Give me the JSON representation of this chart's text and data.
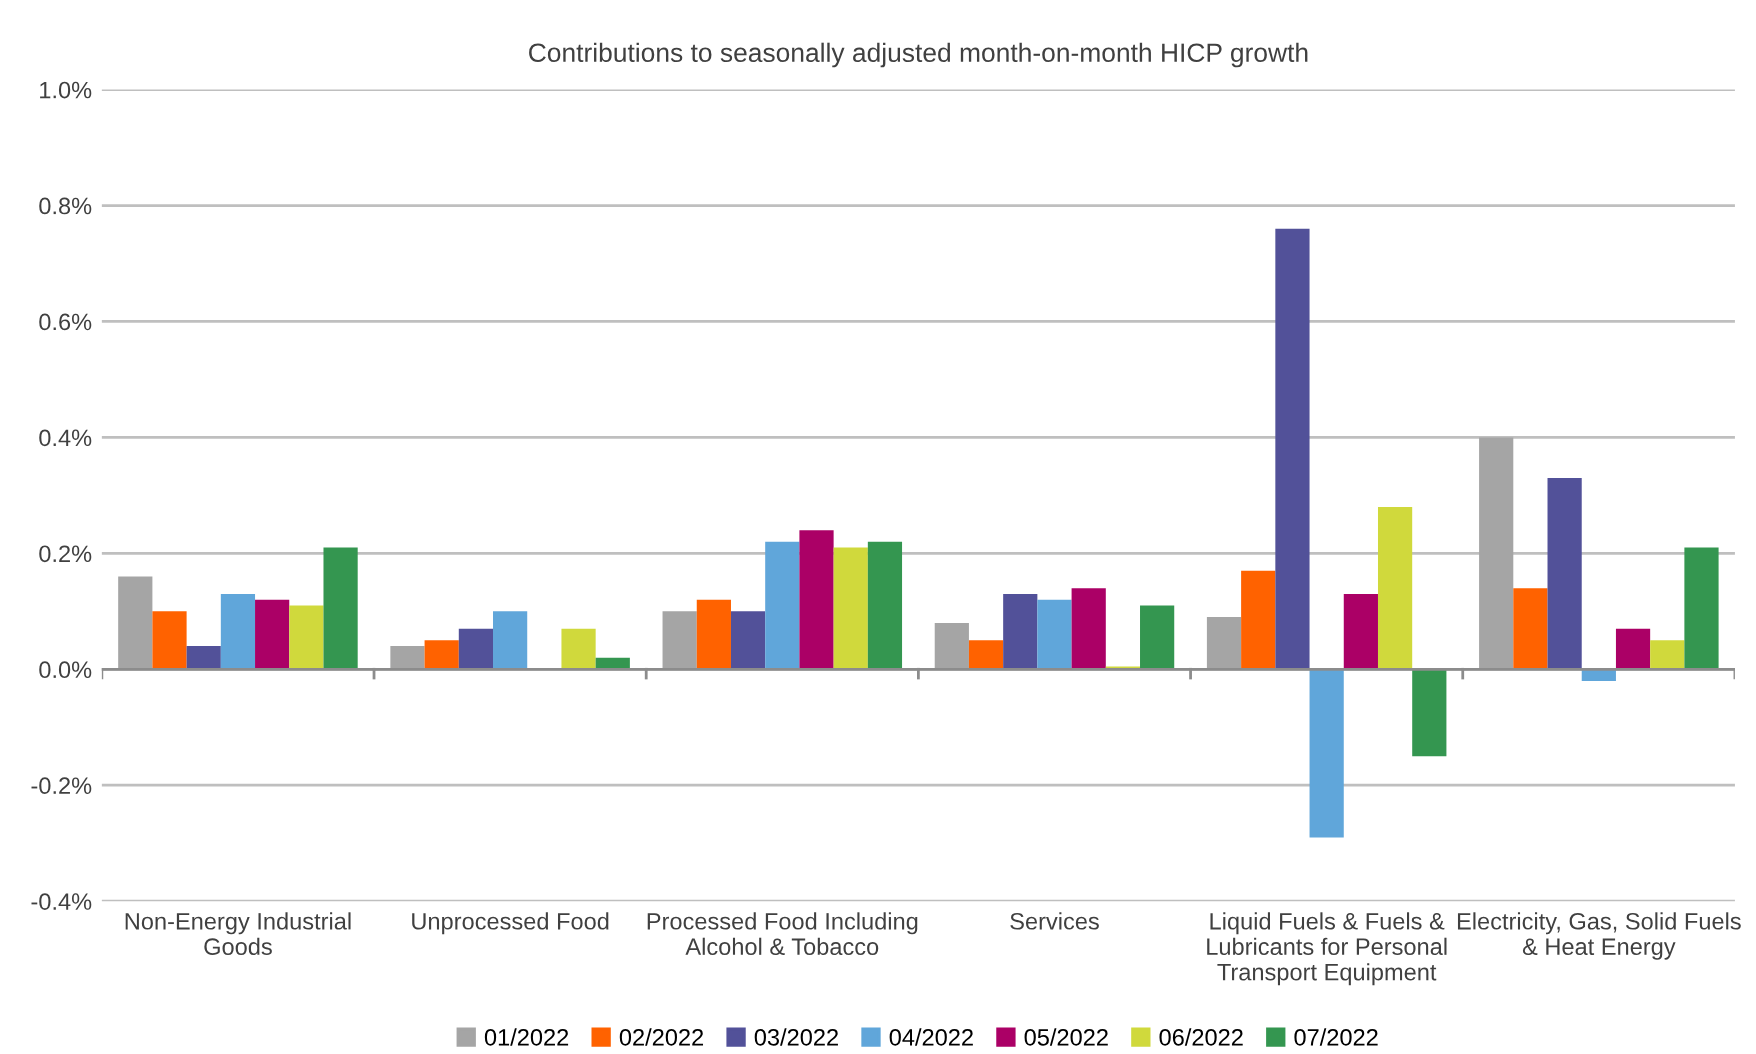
{
  "chart_data": {
    "type": "bar",
    "title": "Contributions to seasonally adjusted month-on-month HICP growth",
    "categories": [
      "Non-Energy Industrial\nGoods",
      "Unprocessed Food",
      "Processed Food Including\nAlcohol & Tobacco",
      "Services",
      "Liquid Fuels & Fuels &\nLubricants for Personal\nTransport Equipment",
      "Electricity, Gas, Solid Fuels\n& Heat Energy"
    ],
    "series": [
      {
        "name": "01/2022",
        "color": "#a5a5a5",
        "values": [
          0.16,
          0.04,
          0.1,
          0.08,
          0.09,
          0.4
        ]
      },
      {
        "name": "02/2022",
        "color": "#ff6200",
        "values": [
          0.1,
          0.05,
          0.12,
          0.05,
          0.17,
          0.14
        ]
      },
      {
        "name": "03/2022",
        "color": "#525199",
        "values": [
          0.04,
          0.07,
          0.1,
          0.13,
          0.76,
          0.33
        ]
      },
      {
        "name": "04/2022",
        "color": "#60a6da",
        "values": [
          0.13,
          0.1,
          0.22,
          0.12,
          -0.29,
          -0.02
        ]
      },
      {
        "name": "05/2022",
        "color": "#ab0066",
        "values": [
          0.12,
          null,
          0.24,
          0.14,
          0.13,
          0.07
        ]
      },
      {
        "name": "06/2022",
        "color": "#d0d93c",
        "values": [
          0.11,
          0.07,
          0.21,
          0.005,
          0.28,
          0.05
        ]
      },
      {
        "name": "07/2022",
        "color": "#349650",
        "values": [
          0.21,
          0.02,
          0.22,
          0.11,
          -0.15,
          0.21
        ]
      }
    ],
    "ylim": [
      -0.4,
      1.0
    ],
    "yticks": [
      {
        "value": -0.4,
        "label": "-0.4%"
      },
      {
        "value": -0.2,
        "label": "-0.2%"
      },
      {
        "value": 0.0,
        "label": "0.0%"
      },
      {
        "value": 0.2,
        "label": "0.2%"
      },
      {
        "value": 0.4,
        "label": "0.4%"
      },
      {
        "value": 0.6,
        "label": "0.6%"
      },
      {
        "value": 0.8,
        "label": "0.8%"
      },
      {
        "value": 1.0,
        "label": "1.0%"
      }
    ],
    "grid": "y",
    "legend": "bottom"
  }
}
